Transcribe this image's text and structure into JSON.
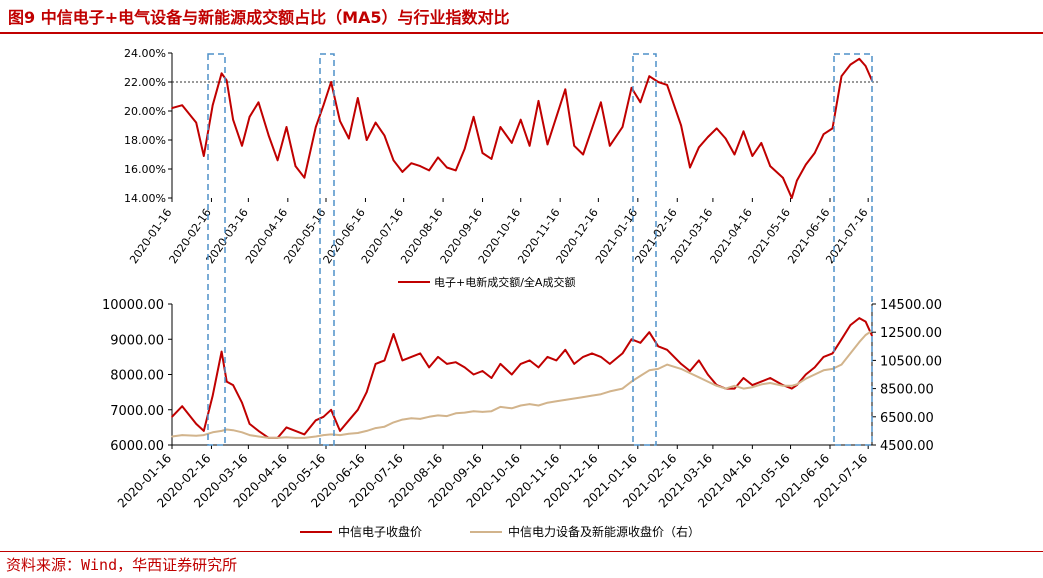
{
  "figure": {
    "title": "图9 中信电子+电气设备与新能源成交额占比（MA5）与行业指数对比",
    "source": "资料来源：Wind，华西证券研究所"
  },
  "colors": {
    "red": "#c00000",
    "tan": "#d2b48c",
    "highlight_box": "#4f90c8",
    "rule": "#c00000",
    "axis_text": "#000000"
  },
  "chart_data": [
    {
      "type": "line",
      "x_ticks": [
        "2020-01-16",
        "2020-02-16",
        "2020-03-16",
        "2020-04-16",
        "2020-05-16",
        "2020-06-16",
        "2020-07-16",
        "2020-08-16",
        "2020-09-16",
        "2020-10-16",
        "2020-11-16",
        "2020-12-16",
        "2021-01-16",
        "2021-02-16",
        "2021-03-16",
        "2021-04-16",
        "2021-05-16",
        "2021-06-16",
        "2021-07-16"
      ],
      "y_ticks": [
        "14.00%",
        "16.00%",
        "18.00%",
        "20.00%",
        "22.00%",
        "24.00%"
      ],
      "ylim": [
        14,
        24
      ],
      "y_unit": "%",
      "reference_line": 22,
      "legend": "电子+电新成交额/全A成交额",
      "series": [
        {
          "name": "电子+电新成交额/全A成交额",
          "x": [
            "2020-01-16",
            "2020-01-24",
            "2020-02-04",
            "2020-02-10",
            "2020-02-17",
            "2020-02-24",
            "2020-02-28",
            "2020-03-04",
            "2020-03-11",
            "2020-03-17",
            "2020-03-24",
            "2020-04-01",
            "2020-04-08",
            "2020-04-15",
            "2020-04-22",
            "2020-04-29",
            "2020-05-08",
            "2020-05-14",
            "2020-05-20",
            "2020-05-27",
            "2020-06-03",
            "2020-06-10",
            "2020-06-17",
            "2020-06-24",
            "2020-07-01",
            "2020-07-08",
            "2020-07-15",
            "2020-07-22",
            "2020-07-29",
            "2020-08-05",
            "2020-08-12",
            "2020-08-19",
            "2020-08-26",
            "2020-09-02",
            "2020-09-09",
            "2020-09-16",
            "2020-09-23",
            "2020-09-30",
            "2020-10-09",
            "2020-10-16",
            "2020-10-23",
            "2020-10-30",
            "2020-11-06",
            "2020-11-13",
            "2020-11-20",
            "2020-11-27",
            "2020-12-04",
            "2020-12-11",
            "2020-12-18",
            "2020-12-25",
            "2021-01-04",
            "2021-01-11",
            "2021-01-18",
            "2021-01-25",
            "2021-02-01",
            "2021-02-08",
            "2021-02-19",
            "2021-02-26",
            "2021-03-05",
            "2021-03-12",
            "2021-03-19",
            "2021-03-26",
            "2021-04-02",
            "2021-04-09",
            "2021-04-16",
            "2021-04-23",
            "2021-04-30",
            "2021-05-10",
            "2021-05-17",
            "2021-05-21",
            "2021-05-28",
            "2021-06-04",
            "2021-06-11",
            "2021-06-18",
            "2021-06-25",
            "2021-07-02",
            "2021-07-09",
            "2021-07-14",
            "2021-07-19"
          ],
          "values": [
            20.2,
            20.4,
            19.2,
            16.9,
            20.4,
            22.6,
            22.1,
            19.4,
            17.6,
            19.6,
            20.6,
            18.3,
            16.6,
            18.9,
            16.2,
            15.4,
            18.9,
            20.4,
            22.0,
            19.3,
            18.1,
            20.9,
            18.0,
            19.2,
            18.3,
            16.6,
            15.8,
            16.4,
            16.2,
            15.9,
            16.8,
            16.1,
            15.9,
            17.4,
            19.6,
            17.1,
            16.7,
            18.9,
            17.8,
            19.4,
            17.6,
            20.7,
            17.7,
            19.6,
            21.5,
            17.6,
            17.0,
            18.8,
            20.6,
            17.6,
            18.9,
            21.6,
            20.6,
            22.4,
            22.0,
            21.8,
            19.0,
            16.1,
            17.5,
            18.2,
            18.8,
            18.1,
            17.0,
            18.6,
            16.9,
            17.8,
            16.2,
            15.4,
            14.0,
            15.2,
            16.3,
            17.1,
            18.4,
            18.8,
            22.4,
            23.2,
            23.6,
            23.1,
            22.1
          ]
        }
      ]
    },
    {
      "type": "line",
      "x_ticks": [
        "2020-01-16",
        "2020-02-16",
        "2020-03-16",
        "2020-04-16",
        "2020-05-16",
        "2020-06-16",
        "2020-07-16",
        "2020-08-16",
        "2020-09-16",
        "2020-10-16",
        "2020-11-16",
        "2020-12-16",
        "2021-01-16",
        "2021-02-16",
        "2021-03-16",
        "2021-04-16",
        "2021-05-16",
        "2021-06-16",
        "2021-07-16"
      ],
      "y_left_ticks": [
        "6000.00",
        "7000.00",
        "8000.00",
        "9000.00",
        "10000.00"
      ],
      "y_right_ticks": [
        "4500.00",
        "6500.00",
        "8500.00",
        "10500.00",
        "12500.00",
        "14500.00"
      ],
      "ylim_left": [
        6000,
        10000
      ],
      "ylim_right": [
        4500,
        14500
      ],
      "series": [
        {
          "name": "中信电子收盘价",
          "axis": "left",
          "x": [
            "2020-01-16",
            "2020-01-24",
            "2020-02-04",
            "2020-02-10",
            "2020-02-17",
            "2020-02-24",
            "2020-02-28",
            "2020-03-04",
            "2020-03-11",
            "2020-03-17",
            "2020-03-24",
            "2020-04-01",
            "2020-04-08",
            "2020-04-15",
            "2020-04-22",
            "2020-04-29",
            "2020-05-08",
            "2020-05-14",
            "2020-05-20",
            "2020-05-27",
            "2020-06-03",
            "2020-06-10",
            "2020-06-17",
            "2020-06-24",
            "2020-07-01",
            "2020-07-08",
            "2020-07-15",
            "2020-07-22",
            "2020-07-29",
            "2020-08-05",
            "2020-08-12",
            "2020-08-19",
            "2020-08-26",
            "2020-09-02",
            "2020-09-09",
            "2020-09-16",
            "2020-09-23",
            "2020-09-30",
            "2020-10-09",
            "2020-10-16",
            "2020-10-23",
            "2020-10-30",
            "2020-11-06",
            "2020-11-13",
            "2020-11-20",
            "2020-11-27",
            "2020-12-04",
            "2020-12-11",
            "2020-12-18",
            "2020-12-25",
            "2021-01-04",
            "2021-01-11",
            "2021-01-18",
            "2021-01-25",
            "2021-02-01",
            "2021-02-08",
            "2021-02-19",
            "2021-02-26",
            "2021-03-05",
            "2021-03-12",
            "2021-03-19",
            "2021-03-26",
            "2021-04-02",
            "2021-04-09",
            "2021-04-16",
            "2021-04-23",
            "2021-04-30",
            "2021-05-10",
            "2021-05-17",
            "2021-05-21",
            "2021-05-28",
            "2021-06-04",
            "2021-06-11",
            "2021-06-18",
            "2021-06-25",
            "2021-07-02",
            "2021-07-09",
            "2021-07-14",
            "2021-07-19"
          ],
          "values": [
            6800,
            7100,
            6600,
            6400,
            7400,
            8650,
            7800,
            7700,
            7200,
            6600,
            6400,
            6200,
            6200,
            6500,
            6400,
            6300,
            6700,
            6800,
            7000,
            6400,
            6700,
            7000,
            7500,
            8300,
            8400,
            9150,
            8400,
            8500,
            8600,
            8200,
            8500,
            8300,
            8350,
            8200,
            8000,
            8100,
            7900,
            8300,
            8000,
            8300,
            8400,
            8200,
            8500,
            8400,
            8700,
            8300,
            8500,
            8600,
            8500,
            8300,
            8600,
            9000,
            8900,
            9200,
            8800,
            8700,
            8300,
            8100,
            8400,
            8000,
            7700,
            7600,
            7600,
            7900,
            7700,
            7800,
            7900,
            7700,
            7600,
            7700,
            8000,
            8200,
            8500,
            8600,
            9000,
            9400,
            9600,
            9500,
            9100
          ]
        },
        {
          "name": "中信电力设备及新能源收盘价（右）",
          "axis": "right",
          "x": [
            "2020-01-16",
            "2020-01-24",
            "2020-02-04",
            "2020-02-10",
            "2020-02-17",
            "2020-02-24",
            "2020-02-28",
            "2020-03-04",
            "2020-03-11",
            "2020-03-17",
            "2020-03-24",
            "2020-04-01",
            "2020-04-08",
            "2020-04-15",
            "2020-04-22",
            "2020-04-29",
            "2020-05-08",
            "2020-05-14",
            "2020-05-20",
            "2020-05-27",
            "2020-06-03",
            "2020-06-10",
            "2020-06-17",
            "2020-06-24",
            "2020-07-01",
            "2020-07-08",
            "2020-07-15",
            "2020-07-22",
            "2020-07-29",
            "2020-08-05",
            "2020-08-12",
            "2020-08-19",
            "2020-08-26",
            "2020-09-02",
            "2020-09-09",
            "2020-09-16",
            "2020-09-23",
            "2020-09-30",
            "2020-10-09",
            "2020-10-16",
            "2020-10-23",
            "2020-10-30",
            "2020-11-06",
            "2020-11-13",
            "2020-11-20",
            "2020-11-27",
            "2020-12-04",
            "2020-12-11",
            "2020-12-18",
            "2020-12-25",
            "2021-01-04",
            "2021-01-11",
            "2021-01-18",
            "2021-01-25",
            "2021-02-01",
            "2021-02-08",
            "2021-02-19",
            "2021-02-26",
            "2021-03-05",
            "2021-03-12",
            "2021-03-19",
            "2021-03-26",
            "2021-04-02",
            "2021-04-09",
            "2021-04-16",
            "2021-04-23",
            "2021-04-30",
            "2021-05-10",
            "2021-05-17",
            "2021-05-21",
            "2021-05-28",
            "2021-06-04",
            "2021-06-11",
            "2021-06-18",
            "2021-06-25",
            "2021-07-02",
            "2021-07-09",
            "2021-07-14",
            "2021-07-19"
          ],
          "values": [
            5100,
            5200,
            5150,
            5200,
            5400,
            5500,
            5600,
            5550,
            5400,
            5200,
            5100,
            5000,
            5000,
            5050,
            5000,
            5000,
            5100,
            5200,
            5250,
            5200,
            5300,
            5350,
            5500,
            5700,
            5800,
            6100,
            6300,
            6400,
            6350,
            6500,
            6600,
            6550,
            6750,
            6800,
            6900,
            6850,
            6900,
            7200,
            7100,
            7300,
            7400,
            7300,
            7500,
            7600,
            7700,
            7800,
            7900,
            8000,
            8100,
            8300,
            8500,
            9000,
            9400,
            9800,
            9900,
            10200,
            9900,
            9600,
            9300,
            9000,
            8700,
            8500,
            8700,
            8500,
            8600,
            8800,
            8900,
            8700,
            8700,
            8800,
            9200,
            9500,
            9800,
            9900,
            10200,
            11000,
            11800,
            12300,
            12600
          ]
        }
      ]
    }
  ]
}
